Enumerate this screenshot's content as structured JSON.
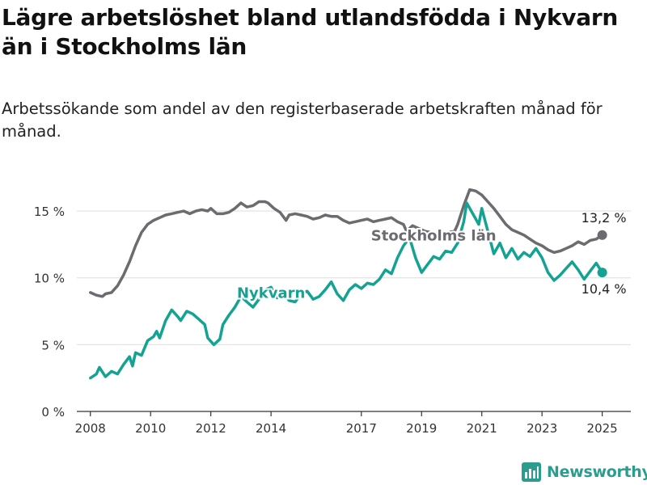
{
  "title": "Lägre arbetslöshet bland utlandsfödda i Nykvarn än i Stockholms län",
  "subtitle": "Arbetssökande som andel av den registerbaserade arbetskraften månad för månad.",
  "brand": "Newsworthy",
  "colors": {
    "stockholm": "#6b6b70",
    "nykvarn": "#14a393",
    "grid": "#dedede",
    "axis": "#333333"
  },
  "chart_data": {
    "type": "line",
    "y_ticks": [
      {
        "value": 0,
        "label": "0 %"
      },
      {
        "value": 5,
        "label": "5 %"
      },
      {
        "value": 10,
        "label": "10 %"
      },
      {
        "value": 15,
        "label": "15 %"
      }
    ],
    "ylim": [
      0,
      17
    ],
    "x_ticks": [
      {
        "value": 2008,
        "label": "2008"
      },
      {
        "value": 2010,
        "label": "2010"
      },
      {
        "value": 2012,
        "label": "2012"
      },
      {
        "value": 2014,
        "label": "2014"
      },
      {
        "value": 2017,
        "label": "2017"
      },
      {
        "value": 2019,
        "label": "2019"
      },
      {
        "value": 2021,
        "label": "2021"
      },
      {
        "value": 2023,
        "label": "2023"
      },
      {
        "value": 2025,
        "label": "2025"
      }
    ],
    "xlim": [
      2007.55,
      2025.95
    ],
    "series": [
      {
        "name": "Stockholms län",
        "key": "stockholm",
        "end_label": "13,2 %",
        "points": [
          [
            2008.0,
            8.9
          ],
          [
            2008.2,
            8.7
          ],
          [
            2008.4,
            8.6
          ],
          [
            2008.5,
            8.8
          ],
          [
            2008.7,
            8.9
          ],
          [
            2008.9,
            9.4
          ],
          [
            2009.1,
            10.2
          ],
          [
            2009.3,
            11.2
          ],
          [
            2009.5,
            12.4
          ],
          [
            2009.7,
            13.4
          ],
          [
            2009.9,
            14.0
          ],
          [
            2010.1,
            14.3
          ],
          [
            2010.3,
            14.5
          ],
          [
            2010.5,
            14.7
          ],
          [
            2010.7,
            14.8
          ],
          [
            2010.9,
            14.9
          ],
          [
            2011.1,
            15.0
          ],
          [
            2011.3,
            14.8
          ],
          [
            2011.5,
            15.0
          ],
          [
            2011.7,
            15.1
          ],
          [
            2011.9,
            15.0
          ],
          [
            2012.0,
            15.2
          ],
          [
            2012.2,
            14.8
          ],
          [
            2012.4,
            14.8
          ],
          [
            2012.6,
            14.9
          ],
          [
            2012.8,
            15.2
          ],
          [
            2013.0,
            15.6
          ],
          [
            2013.2,
            15.3
          ],
          [
            2013.4,
            15.4
          ],
          [
            2013.6,
            15.7
          ],
          [
            2013.8,
            15.7
          ],
          [
            2013.9,
            15.6
          ],
          [
            2014.1,
            15.2
          ],
          [
            2014.3,
            14.9
          ],
          [
            2014.5,
            14.3
          ],
          [
            2014.6,
            14.7
          ],
          [
            2014.8,
            14.8
          ],
          [
            2015.0,
            14.7
          ],
          [
            2015.2,
            14.6
          ],
          [
            2015.4,
            14.4
          ],
          [
            2015.6,
            14.5
          ],
          [
            2015.8,
            14.7
          ],
          [
            2016.0,
            14.6
          ],
          [
            2016.2,
            14.6
          ],
          [
            2016.4,
            14.3
          ],
          [
            2016.6,
            14.1
          ],
          [
            2016.8,
            14.2
          ],
          [
            2017.0,
            14.3
          ],
          [
            2017.2,
            14.4
          ],
          [
            2017.4,
            14.2
          ],
          [
            2017.6,
            14.3
          ],
          [
            2017.8,
            14.4
          ],
          [
            2018.0,
            14.5
          ],
          [
            2018.2,
            14.2
          ],
          [
            2018.4,
            14.0
          ],
          [
            2018.5,
            13.5
          ],
          [
            2018.7,
            13.9
          ],
          [
            2018.9,
            13.7
          ],
          [
            2019.1,
            13.5
          ],
          [
            2019.3,
            13.4
          ],
          [
            2019.5,
            13.3
          ],
          [
            2019.7,
            13.3
          ],
          [
            2019.9,
            13.4
          ],
          [
            2020.1,
            13.5
          ],
          [
            2020.2,
            14.0
          ],
          [
            2020.4,
            15.4
          ],
          [
            2020.6,
            16.6
          ],
          [
            2020.8,
            16.5
          ],
          [
            2021.0,
            16.2
          ],
          [
            2021.2,
            15.7
          ],
          [
            2021.4,
            15.2
          ],
          [
            2021.6,
            14.6
          ],
          [
            2021.8,
            14.0
          ],
          [
            2022.0,
            13.6
          ],
          [
            2022.2,
            13.4
          ],
          [
            2022.4,
            13.2
          ],
          [
            2022.6,
            12.9
          ],
          [
            2022.8,
            12.6
          ],
          [
            2023.0,
            12.4
          ],
          [
            2023.2,
            12.1
          ],
          [
            2023.4,
            11.9
          ],
          [
            2023.6,
            12.0
          ],
          [
            2023.8,
            12.2
          ],
          [
            2024.0,
            12.4
          ],
          [
            2024.2,
            12.7
          ],
          [
            2024.4,
            12.5
          ],
          [
            2024.6,
            12.8
          ],
          [
            2024.8,
            12.9
          ],
          [
            2025.0,
            13.2
          ]
        ]
      },
      {
        "name": "Nykvarn",
        "key": "nykvarn",
        "end_label": "10,4 %",
        "points": [
          [
            2008.0,
            2.5
          ],
          [
            2008.2,
            2.8
          ],
          [
            2008.3,
            3.3
          ],
          [
            2008.5,
            2.6
          ],
          [
            2008.7,
            3.0
          ],
          [
            2008.9,
            2.8
          ],
          [
            2009.1,
            3.5
          ],
          [
            2009.3,
            4.1
          ],
          [
            2009.4,
            3.4
          ],
          [
            2009.5,
            4.4
          ],
          [
            2009.7,
            4.2
          ],
          [
            2009.9,
            5.3
          ],
          [
            2010.1,
            5.6
          ],
          [
            2010.2,
            6.0
          ],
          [
            2010.3,
            5.5
          ],
          [
            2010.5,
            6.8
          ],
          [
            2010.7,
            7.6
          ],
          [
            2010.9,
            7.1
          ],
          [
            2011.0,
            6.8
          ],
          [
            2011.2,
            7.5
          ],
          [
            2011.4,
            7.3
          ],
          [
            2011.6,
            6.9
          ],
          [
            2011.8,
            6.5
          ],
          [
            2011.9,
            5.5
          ],
          [
            2012.1,
            5.0
          ],
          [
            2012.3,
            5.4
          ],
          [
            2012.4,
            6.5
          ],
          [
            2012.6,
            7.2
          ],
          [
            2012.8,
            7.8
          ],
          [
            2013.0,
            8.6
          ],
          [
            2013.2,
            8.2
          ],
          [
            2013.4,
            7.8
          ],
          [
            2013.6,
            8.4
          ],
          [
            2013.8,
            9.1
          ],
          [
            2014.0,
            9.3
          ],
          [
            2014.2,
            8.5
          ],
          [
            2014.4,
            8.9
          ],
          [
            2014.6,
            8.3
          ],
          [
            2014.8,
            8.2
          ],
          [
            2015.0,
            8.8
          ],
          [
            2015.2,
            9.0
          ],
          [
            2015.4,
            8.4
          ],
          [
            2015.6,
            8.6
          ],
          [
            2015.8,
            9.1
          ],
          [
            2016.0,
            9.7
          ],
          [
            2016.2,
            8.8
          ],
          [
            2016.4,
            8.3
          ],
          [
            2016.6,
            9.1
          ],
          [
            2016.8,
            9.5
          ],
          [
            2017.0,
            9.2
          ],
          [
            2017.2,
            9.6
          ],
          [
            2017.4,
            9.5
          ],
          [
            2017.6,
            9.9
          ],
          [
            2017.8,
            10.6
          ],
          [
            2018.0,
            10.3
          ],
          [
            2018.2,
            11.5
          ],
          [
            2018.4,
            12.4
          ],
          [
            2018.6,
            13.0
          ],
          [
            2018.8,
            11.5
          ],
          [
            2019.0,
            10.4
          ],
          [
            2019.2,
            11.0
          ],
          [
            2019.4,
            11.6
          ],
          [
            2019.6,
            11.4
          ],
          [
            2019.8,
            12.0
          ],
          [
            2020.0,
            11.9
          ],
          [
            2020.2,
            12.6
          ],
          [
            2020.4,
            14.2
          ],
          [
            2020.5,
            15.6
          ],
          [
            2020.7,
            14.8
          ],
          [
            2020.9,
            14.0
          ],
          [
            2021.0,
            15.2
          ],
          [
            2021.2,
            13.5
          ],
          [
            2021.4,
            11.8
          ],
          [
            2021.6,
            12.6
          ],
          [
            2021.8,
            11.5
          ],
          [
            2022.0,
            12.2
          ],
          [
            2022.2,
            11.4
          ],
          [
            2022.4,
            11.9
          ],
          [
            2022.6,
            11.6
          ],
          [
            2022.8,
            12.2
          ],
          [
            2023.0,
            11.5
          ],
          [
            2023.2,
            10.4
          ],
          [
            2023.4,
            9.8
          ],
          [
            2023.6,
            10.2
          ],
          [
            2023.8,
            10.7
          ],
          [
            2024.0,
            11.2
          ],
          [
            2024.2,
            10.6
          ],
          [
            2024.4,
            9.9
          ],
          [
            2024.6,
            10.5
          ],
          [
            2024.8,
            11.1
          ],
          [
            2025.0,
            10.4
          ]
        ]
      }
    ],
    "annotations": [
      {
        "text": "Stockholms län",
        "series": "stockholm",
        "x": 2019.4,
        "y": 12.8
      },
      {
        "text": "Nykvarn",
        "series": "nykvarn",
        "x": 2014.0,
        "y": 8.5
      }
    ]
  }
}
